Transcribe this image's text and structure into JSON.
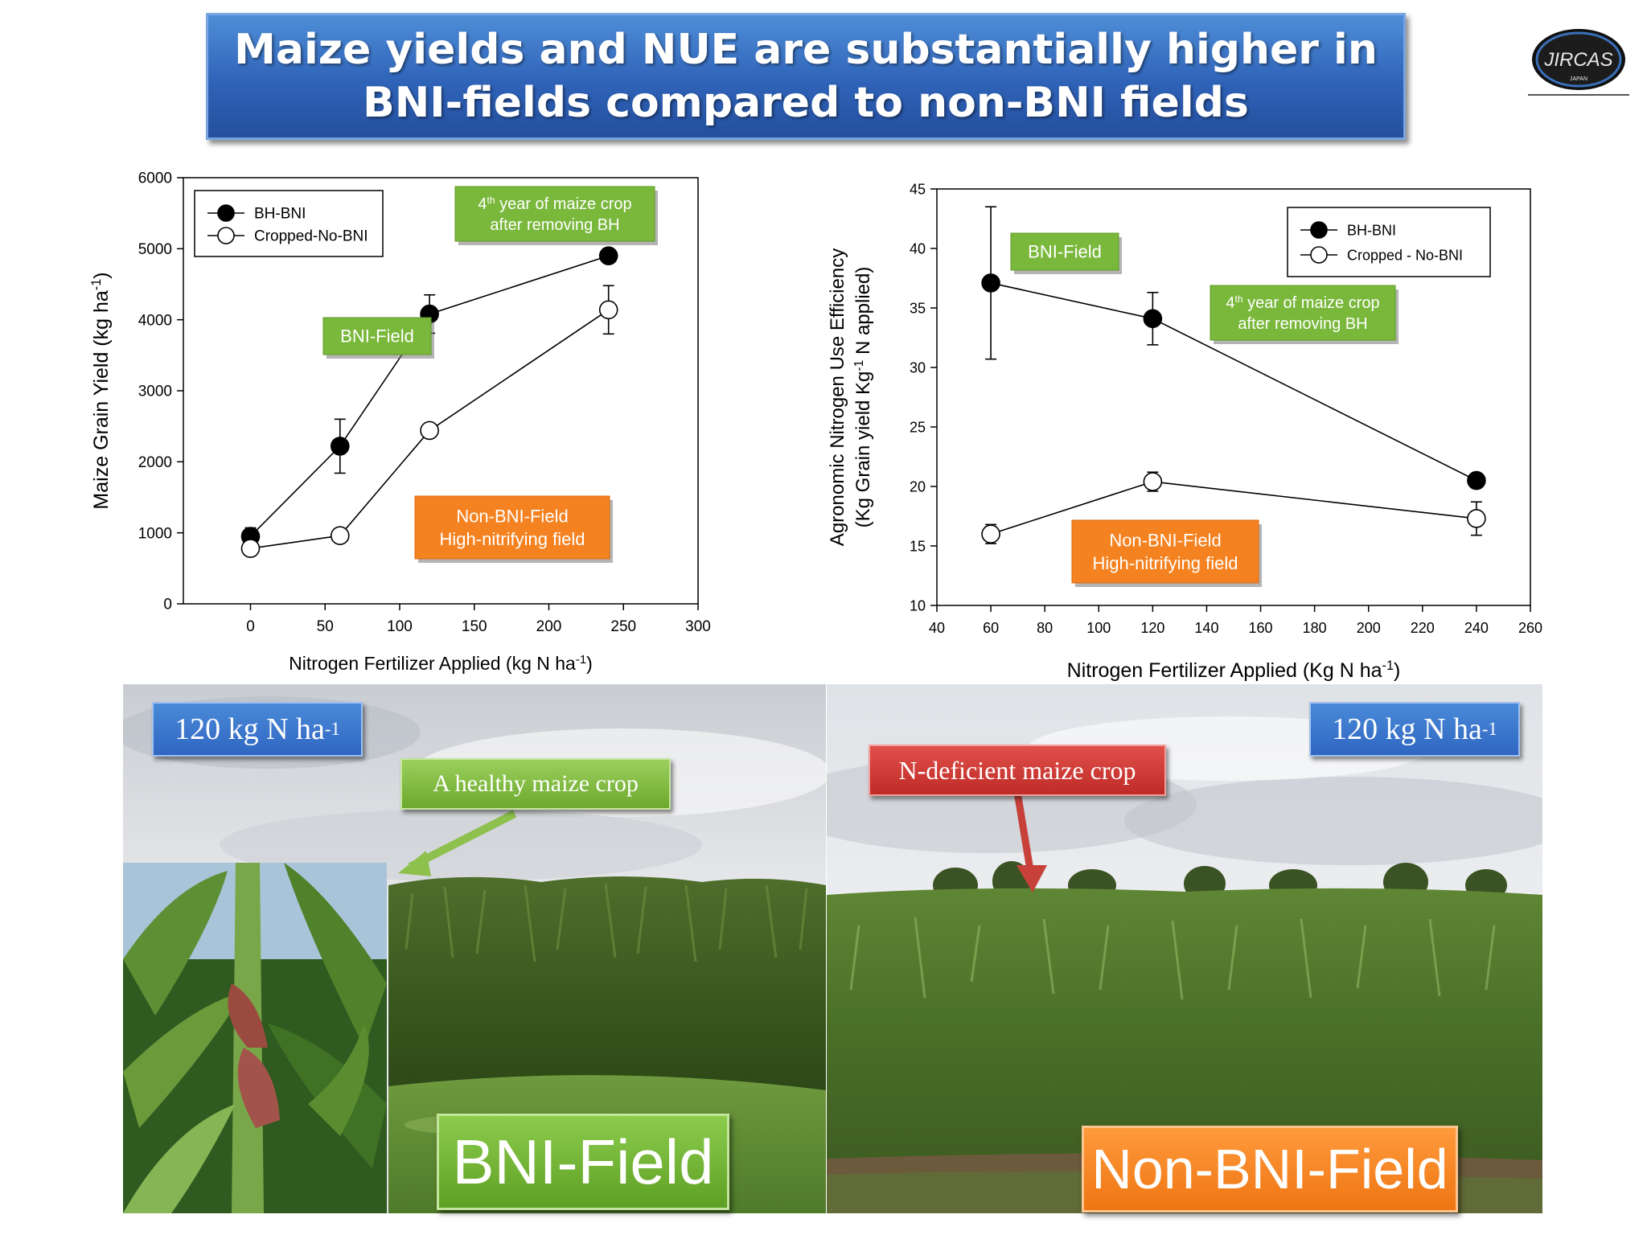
{
  "title": "Maize yields and NUE are substantially higher in\nBNI-fields compared to non-BNI fields",
  "logo": {
    "text": "JIRCAS",
    "subtext": "JAPAN",
    "icon": "globe-logo"
  },
  "colors": {
    "title_blue": "#2f63b8",
    "green": "#6ca92e",
    "orange": "#f07b1a",
    "red": "#c8302c",
    "blue_box": "#2f66c2"
  },
  "chart_data": [
    {
      "type": "line",
      "xlabel": "Nitrogen Fertilizer Applied (kg N ha-1)",
      "ylabel": "Maize Grain Yield (kg ha-1)",
      "xlim": [
        -45,
        300
      ],
      "ylim": [
        0,
        6000
      ],
      "xticks": [
        0,
        50,
        100,
        150,
        200,
        250,
        300
      ],
      "yticks": [
        0,
        1000,
        2000,
        3000,
        4000,
        5000,
        6000
      ],
      "legend_position": "top-left",
      "series": [
        {
          "name": "BH-BNI",
          "marker": "filled-circle",
          "x": [
            0,
            60,
            120,
            240
          ],
          "y": [
            950,
            2220,
            4080,
            4900
          ],
          "err": [
            120,
            380,
            270,
            70
          ]
        },
        {
          "name": "Cropped-No-BNI",
          "marker": "open-circle",
          "x": [
            0,
            60,
            120,
            240
          ],
          "y": [
            780,
            960,
            2440,
            4140
          ],
          "err": [
            40,
            40,
            60,
            340
          ]
        }
      ],
      "annotations": [
        {
          "lines": [
            "4th year of maize crop",
            "after removing BH"
          ],
          "style": "green"
        },
        {
          "lines": [
            "BNI-Field"
          ],
          "style": "green"
        },
        {
          "lines": [
            "Non-BNI-Field",
            "High-nitrifying field"
          ],
          "style": "orange"
        }
      ]
    },
    {
      "type": "line",
      "xlabel": "Nitrogen Fertilizer Applied (Kg N ha-1)",
      "ylabel_line1": "Agronomic Nitrogen Use Efficiency",
      "ylabel_line2": "(Kg Grain yield Kg-1 N applied)",
      "xlim": [
        40,
        260
      ],
      "ylim": [
        10,
        45
      ],
      "xticks": [
        40,
        60,
        80,
        100,
        120,
        140,
        160,
        180,
        200,
        220,
        240,
        260
      ],
      "yticks": [
        10,
        15,
        20,
        25,
        30,
        35,
        40,
        45
      ],
      "legend_position": "top-right",
      "series": [
        {
          "name": "BH-BNI",
          "marker": "filled-circle",
          "x": [
            60,
            120,
            240
          ],
          "y": [
            37.1,
            34.1,
            20.5
          ],
          "err": [
            6.4,
            2.2,
            0.3
          ]
        },
        {
          "name": "Cropped - No-BNI",
          "marker": "open-circle",
          "x": [
            60,
            120,
            240
          ],
          "y": [
            16.0,
            20.4,
            17.3
          ],
          "err": [
            0.8,
            0.8,
            1.4
          ]
        }
      ],
      "annotations": [
        {
          "lines": [
            "BNI-Field"
          ],
          "style": "green"
        },
        {
          "lines": [
            "4th year of maize crop",
            "after removing BH"
          ],
          "style": "green"
        },
        {
          "lines": [
            "Non-BNI-Field",
            "High-nitrifying field"
          ],
          "style": "orange"
        }
      ]
    }
  ],
  "photos": {
    "left": {
      "dose_label": "120 kg N ha",
      "dose_sup": "-1",
      "callout": "A healthy maize crop",
      "field_label": "BNI-Field"
    },
    "right": {
      "dose_label": "120 kg N ha",
      "dose_sup": "-1",
      "callout": "N-deficient maize crop",
      "field_label": "Non-BNI-Field"
    }
  }
}
